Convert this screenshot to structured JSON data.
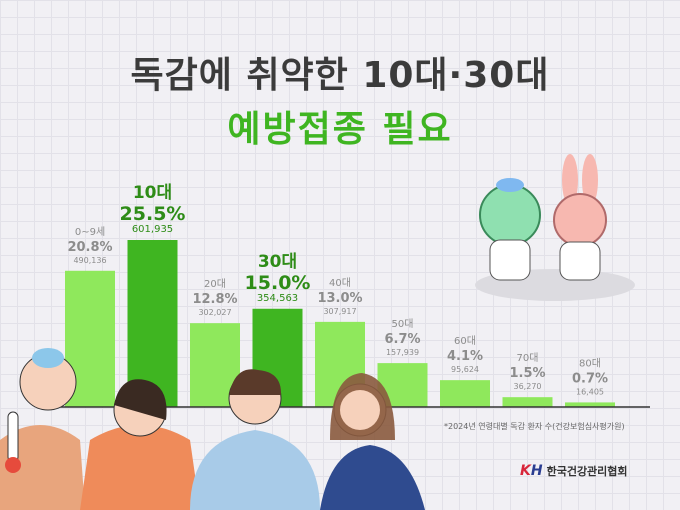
{
  "title_line1": "독감에 취약한 10대·30대",
  "title_line2": "예방접종 필요",
  "footnote": "*2024년 연령대별 독감 환자 수(건강보험심사평가원)",
  "logo": {
    "mark": "KH",
    "name": "한국건강관리협회"
  },
  "colors": {
    "bar": "#8fe85c",
    "bar_highlight": "#3fb521",
    "label": "#8c8c8c",
    "label_highlight": "#2e8c17",
    "title": "#3b3b3b",
    "accent": "#3fb521"
  },
  "chart_data": {
    "type": "bar",
    "title": "",
    "xlabel": "",
    "ylabel": "",
    "ylim": [
      0,
      25.5
    ],
    "grid": false,
    "categories": [
      "0~9세",
      "10대",
      "20대",
      "30대",
      "40대",
      "50대",
      "60대",
      "70대",
      "80대"
    ],
    "values": [
      20.8,
      25.5,
      12.8,
      15.0,
      13.0,
      6.7,
      4.1,
      1.5,
      0.7
    ],
    "value_labels": [
      "20.8%",
      "25.5%",
      "12.8%",
      "15.0%",
      "13.0%",
      "6.7%",
      "4.1%",
      "1.5%",
      "0.7%"
    ],
    "patients": [
      "490,136",
      "601,935",
      "302,027",
      "354,563",
      "307,917",
      "157,939",
      "95,624",
      "36,270",
      "16,405"
    ],
    "highlighted": [
      "10대",
      "30대"
    ]
  }
}
